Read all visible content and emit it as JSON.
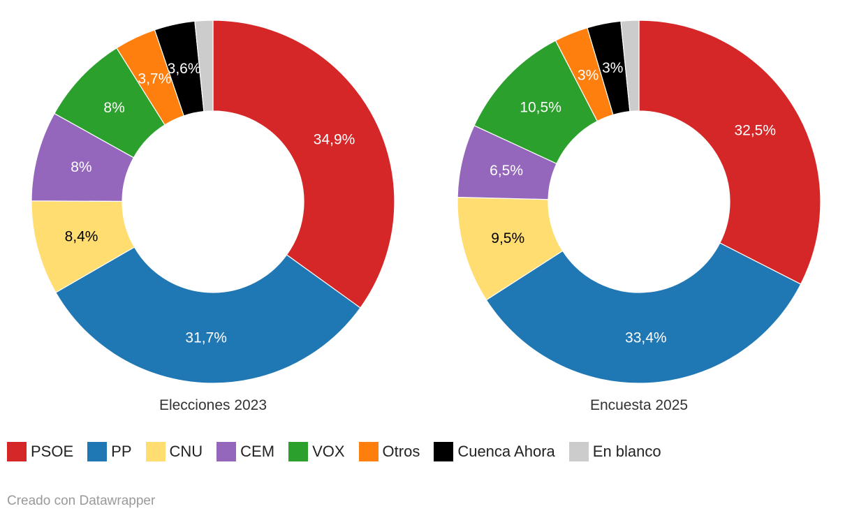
{
  "chart_data": [
    {
      "type": "donut",
      "title": "Elecciones 2023",
      "categories": [
        "PSOE",
        "PP",
        "CNU",
        "CEM",
        "VOX",
        "Otros",
        "Cuenca Ahora",
        "En blanco"
      ],
      "values": [
        34.9,
        31.7,
        8.4,
        8.0,
        8.0,
        3.7,
        3.6,
        1.6
      ],
      "labels": [
        "34,9%",
        "31,7%",
        "8,4%",
        "8%",
        "8%",
        "3,7%",
        "3,6%",
        ""
      ]
    },
    {
      "type": "donut",
      "title": "Encuesta 2025",
      "categories": [
        "PSOE",
        "PP",
        "CNU",
        "CEM",
        "VOX",
        "Otros",
        "Cuenca Ahora",
        "En blanco"
      ],
      "values": [
        32.5,
        33.4,
        9.5,
        6.5,
        10.5,
        3.0,
        3.0,
        1.6
      ],
      "labels": [
        "32,5%",
        "33,4%",
        "9,5%",
        "6,5%",
        "10,5%",
        "3%",
        "3%",
        ""
      ]
    }
  ],
  "legend": [
    {
      "label": "PSOE",
      "color": "#d62728"
    },
    {
      "label": "PP",
      "color": "#1f77b4"
    },
    {
      "label": "CNU",
      "color": "#ffdd71"
    },
    {
      "label": "CEM",
      "color": "#9467bd"
    },
    {
      "label": "VOX",
      "color": "#2ca02c"
    },
    {
      "label": "Otros",
      "color": "#ff7f0e"
    },
    {
      "label": "Cuenca Ahora",
      "color": "#000000"
    },
    {
      "label": "En blanco",
      "color": "#cccccc"
    }
  ],
  "label_text_colors": {
    "PSOE": "#ffffff",
    "PP": "#ffffff",
    "CNU": "#000000",
    "CEM": "#ffffff",
    "VOX": "#ffffff",
    "Otros": "#ffffff",
    "Cuenca Ahora": "#ffffff",
    "En blanco": "#000000"
  },
  "credit": "Creado con Datawrapper"
}
